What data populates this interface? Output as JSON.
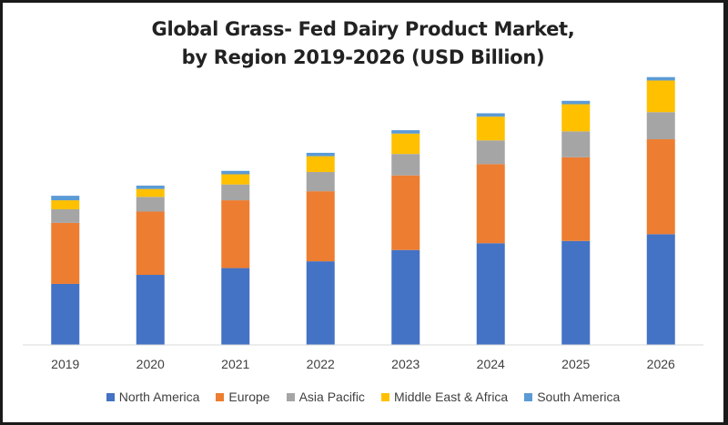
{
  "chart_data": {
    "type": "bar",
    "stacked": true,
    "title_lines": [
      "Global Grass- Fed Dairy Product Market,",
      "by Region 2019-2026 (USD Billion)"
    ],
    "xlabel": "",
    "ylabel": "",
    "categories": [
      "2019",
      "2020",
      "2021",
      "2022",
      "2023",
      "2024",
      "2025",
      "2026"
    ],
    "series": [
      {
        "name": "North America",
        "color": "#4472C4",
        "values": [
          27.0,
          31.0,
          34.0,
          37.0,
          42.0,
          45.0,
          46.0,
          49.0
        ]
      },
      {
        "name": "Europe",
        "color": "#ED7D31",
        "values": [
          27.0,
          28.0,
          30.0,
          31.0,
          33.0,
          35.0,
          37.0,
          42.0
        ]
      },
      {
        "name": "Asia Pacific",
        "color": "#A5A5A5",
        "values": [
          6.0,
          6.5,
          7.0,
          8.5,
          9.5,
          10.5,
          11.5,
          12.0
        ]
      },
      {
        "name": "Middle East & Africa",
        "color": "#FFC000",
        "values": [
          4.0,
          3.5,
          4.5,
          7.0,
          9.0,
          10.5,
          12.0,
          14.0
        ]
      },
      {
        "name": "South America",
        "color": "#5B9BD5",
        "values": [
          2.0,
          1.5,
          1.5,
          1.5,
          1.5,
          1.5,
          1.5,
          1.5
        ]
      }
    ],
    "ylim": [
      0,
      120
    ],
    "grid": false,
    "legend_position": "bottom"
  }
}
